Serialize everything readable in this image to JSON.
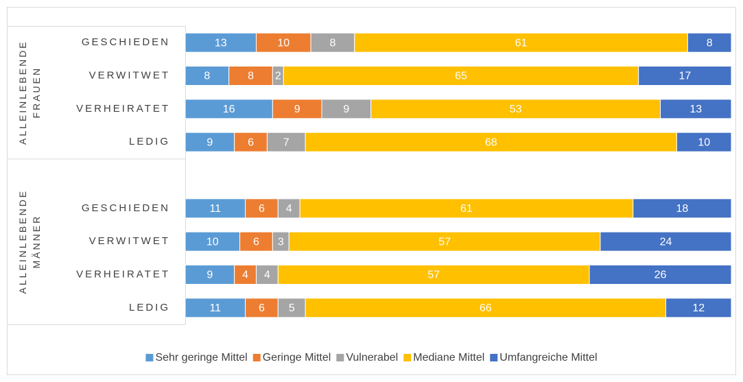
{
  "chart_data": {
    "type": "bar",
    "orientation": "horizontal",
    "stacked": true,
    "groups": [
      {
        "label": "ALLEINLEBENDE FRAUEN",
        "categories": [
          "GESCHIEDEN",
          "VERWITWET",
          "VERHEIRATET",
          "LEDIG"
        ]
      },
      {
        "label": "ALLEINLEBENDE MÄNNER",
        "categories": [
          null,
          "GESCHIEDEN",
          "VERWITWET",
          "VERHEIRATET",
          "LEDIG"
        ]
      }
    ],
    "series": [
      {
        "name": "Sehr geringe Mittel",
        "color": "#5b9bd5",
        "values": [
          13,
          8,
          16,
          9,
          null,
          11,
          10,
          9,
          11
        ]
      },
      {
        "name": "Geringe Mittel",
        "color": "#ed7d31",
        "values": [
          10,
          8,
          9,
          6,
          null,
          6,
          6,
          4,
          6
        ]
      },
      {
        "name": "Vulnerabel",
        "color": "#a5a5a5",
        "values": [
          8,
          2,
          9,
          7,
          null,
          4,
          3,
          4,
          5
        ]
      },
      {
        "name": "Mediane Mittel",
        "color": "#ffc000",
        "values": [
          61,
          65,
          53,
          68,
          null,
          61,
          57,
          57,
          66
        ]
      },
      {
        "name": "Umfangreiche Mittel",
        "color": "#4472c4",
        "values": [
          8,
          17,
          13,
          10,
          null,
          18,
          24,
          26,
          12
        ]
      }
    ],
    "xlim": [
      0,
      100
    ],
    "legend": "bottom"
  }
}
